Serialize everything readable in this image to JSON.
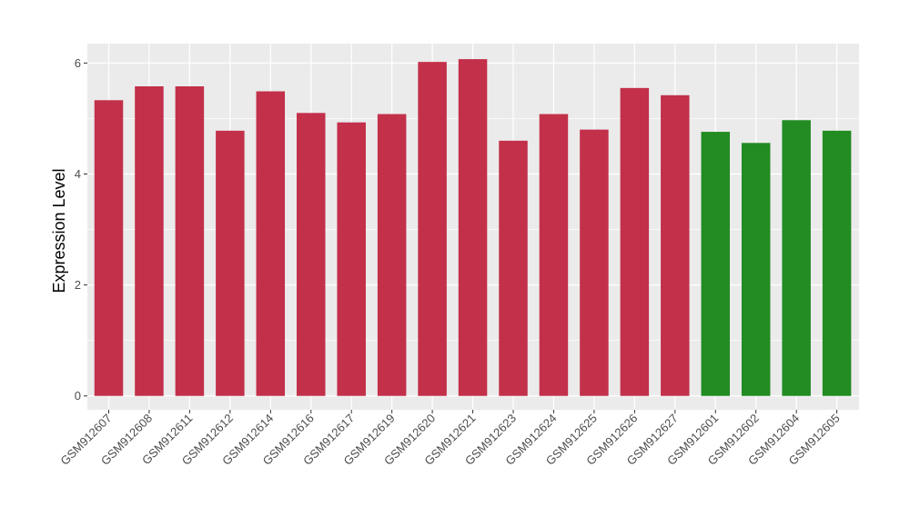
{
  "chart_data": {
    "type": "bar",
    "xlabel": "",
    "ylabel": "Expression Level",
    "ylim": [
      -0.25,
      6.35
    ],
    "yticks": [
      0,
      2,
      4,
      6
    ],
    "grid": true,
    "legend": "none",
    "panel_background": "#ebebeb",
    "grid_color": "#ffffff",
    "categories": [
      "GSM912607",
      "GSM912608",
      "GSM912611",
      "GSM912612",
      "GSM912614",
      "GSM912616",
      "GSM912617",
      "GSM912619",
      "GSM912620",
      "GSM912621",
      "GSM912623",
      "GSM912624",
      "GSM912625",
      "GSM912626",
      "GSM912627",
      "GSM912601",
      "GSM912602",
      "GSM912604",
      "GSM912605"
    ],
    "values": [
      5.33,
      5.58,
      5.58,
      4.78,
      5.49,
      5.1,
      4.93,
      5.08,
      6.02,
      6.07,
      4.6,
      5.08,
      4.8,
      5.55,
      5.42,
      4.76,
      4.56,
      4.97,
      4.78
    ],
    "colors": [
      "#c3304a",
      "#c3304a",
      "#c3304a",
      "#c3304a",
      "#c3304a",
      "#c3304a",
      "#c3304a",
      "#c3304a",
      "#c3304a",
      "#c3304a",
      "#c3304a",
      "#c3304a",
      "#c3304a",
      "#c3304a",
      "#c3304a",
      "#228b22",
      "#228b22",
      "#228b22",
      "#228b22"
    ]
  }
}
